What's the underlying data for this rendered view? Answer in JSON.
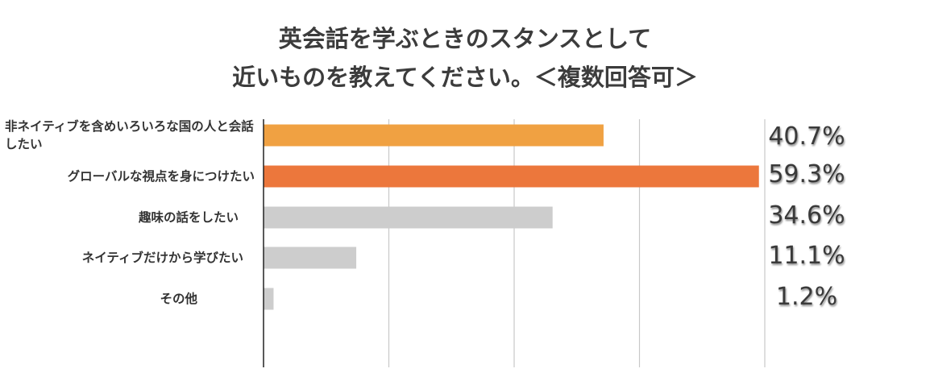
{
  "chart_data": {
    "type": "bar",
    "orientation": "horizontal",
    "title_lines": [
      "英会話を学ぶときのスタンスとして",
      "近いものを教えてください。＜複数回答可＞"
    ],
    "categories": [
      "非ネイティブを含めいろいろな国の人と会話したい",
      "グローバルな視点を身につけたい",
      "趣味の話をしたい",
      "ネイティブだけから学びたい",
      "その他"
    ],
    "values": [
      40.7,
      59.3,
      34.6,
      11.1,
      1.2
    ],
    "value_labels": [
      "40.7%",
      "59.3%",
      "34.6%",
      "11.1%",
      "1.2%"
    ],
    "bar_colors": [
      "#F0A142",
      "#EC773C",
      "#CDCDCD",
      "#CDCDCD",
      "#CDCDCD"
    ],
    "xlim": [
      0,
      60
    ],
    "gridlines": [
      15,
      30,
      45,
      60
    ],
    "grid": true,
    "legend": "none"
  }
}
